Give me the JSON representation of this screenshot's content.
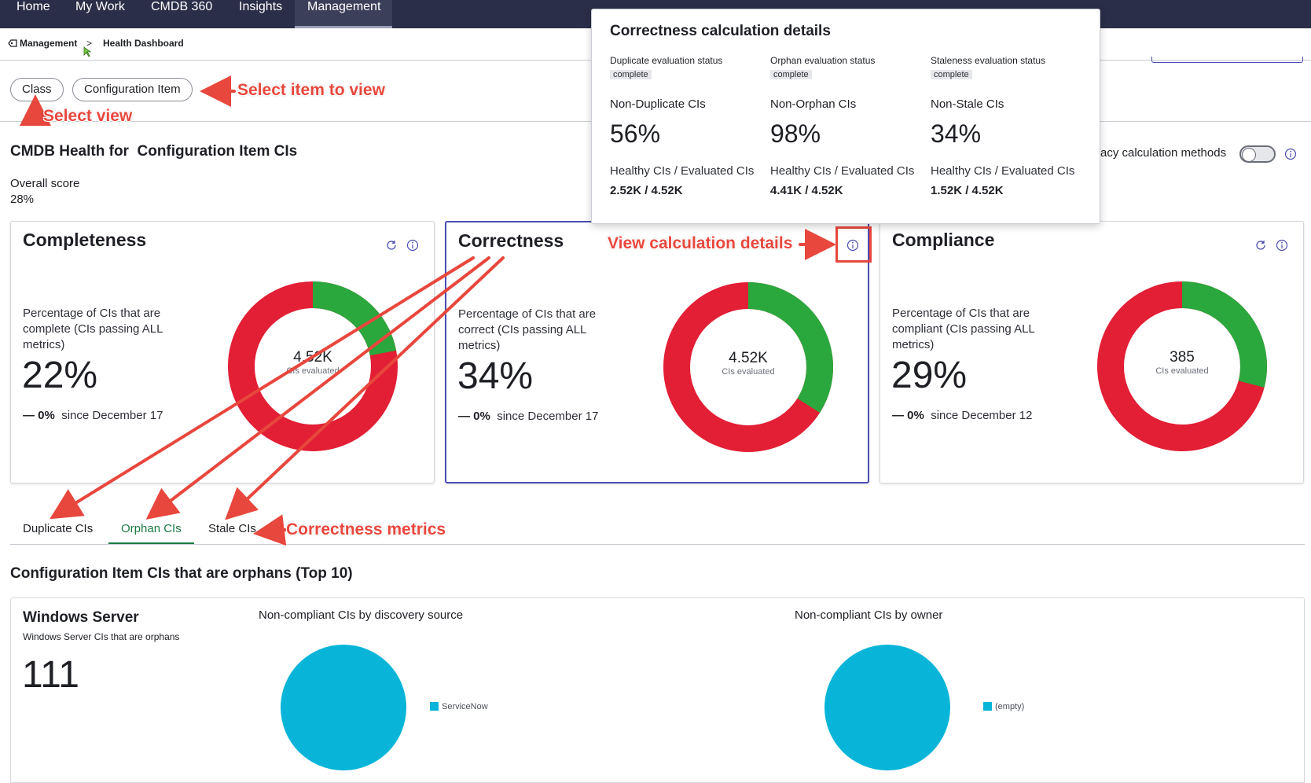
{
  "nav": {
    "items": [
      {
        "label": "Home"
      },
      {
        "label": "My Work"
      },
      {
        "label": "CMDB 360"
      },
      {
        "label": "Insights"
      },
      {
        "label": "Management",
        "active": true
      }
    ]
  },
  "breadcrumb": {
    "root": "Management",
    "current": "Health Dashboard",
    "separator": ">"
  },
  "view_selector": {
    "class_label": "Class",
    "item_label": "Configuration Item"
  },
  "annotations": {
    "select_item": "Select item to view",
    "select_view": "Select view",
    "view_calc": "View calculation details",
    "correctness_metrics": "Correctness metrics"
  },
  "health": {
    "title": "CMDB Health for  Configuration Item CIs",
    "overall_label": "Overall score",
    "overall_value": "28%",
    "legacy_label": "acy calculation methods",
    "legacy_enabled": false
  },
  "cards": [
    {
      "title": "Completeness",
      "description": "Percentage of CIs that are complete (CIs passing ALL metrics)",
      "percent": "22%",
      "change": "— 0%",
      "since": "since December 17",
      "donut_value": "4.52K",
      "donut_label": "CIs evaluated",
      "healthy_fraction": 0.22
    },
    {
      "title": "Correctness",
      "description": "Percentage of CIs that are correct (CIs passing ALL metrics)",
      "percent": "34%",
      "change": "— 0%",
      "since": "since December 17",
      "donut_value": "4.52K",
      "donut_label": "CIs evaluated",
      "healthy_fraction": 0.34
    },
    {
      "title": "Compliance",
      "description": "Percentage of CIs that are compliant (CIs passing ALL metrics)",
      "percent": "29%",
      "change": "— 0%",
      "since": "since December 12",
      "donut_value": "385",
      "donut_label": "CIs evaluated",
      "healthy_fraction": 0.29
    }
  ],
  "popover": {
    "title": "Correctness calculation details",
    "columns": [
      {
        "status_label": "Duplicate evaluation status",
        "status": "complete",
        "metric": "Non-Duplicate CIs",
        "percent": "56%",
        "ratio_label": "Healthy CIs / Evaluated CIs",
        "ratio": "2.52K / 4.52K"
      },
      {
        "status_label": "Orphan evaluation status",
        "status": "complete",
        "metric": "Non-Orphan CIs",
        "percent": "98%",
        "ratio_label": "Healthy CIs / Evaluated CIs",
        "ratio": "4.41K / 4.52K"
      },
      {
        "status_label": "Staleness evaluation status",
        "status": "complete",
        "metric": "Non-Stale CIs",
        "percent": "34%",
        "ratio_label": "Healthy CIs / Evaluated CIs",
        "ratio": "1.52K / 4.52K"
      }
    ]
  },
  "tabs": [
    {
      "label": "Duplicate CIs"
    },
    {
      "label": "Orphan CIs",
      "active": true
    },
    {
      "label": "Stale CIs"
    }
  ],
  "orphans": {
    "section_title": "Configuration Item CIs that are orphans (Top 10)",
    "class_name": "Windows Server",
    "class_sub": "Windows Server CIs that are orphans",
    "count": "111",
    "chart1_title": "Non-compliant CIs by discovery source",
    "chart1_legend": "ServiceNow",
    "chart2_title": "Non-compliant CIs by owner",
    "chart2_legend": "(empty)"
  },
  "colors": {
    "healthy": "#2aa83d",
    "unhealthy": "#e21f35",
    "pie": "#08b5d9",
    "annotation": "#e8473d",
    "nav_bg": "#2b2e48"
  }
}
